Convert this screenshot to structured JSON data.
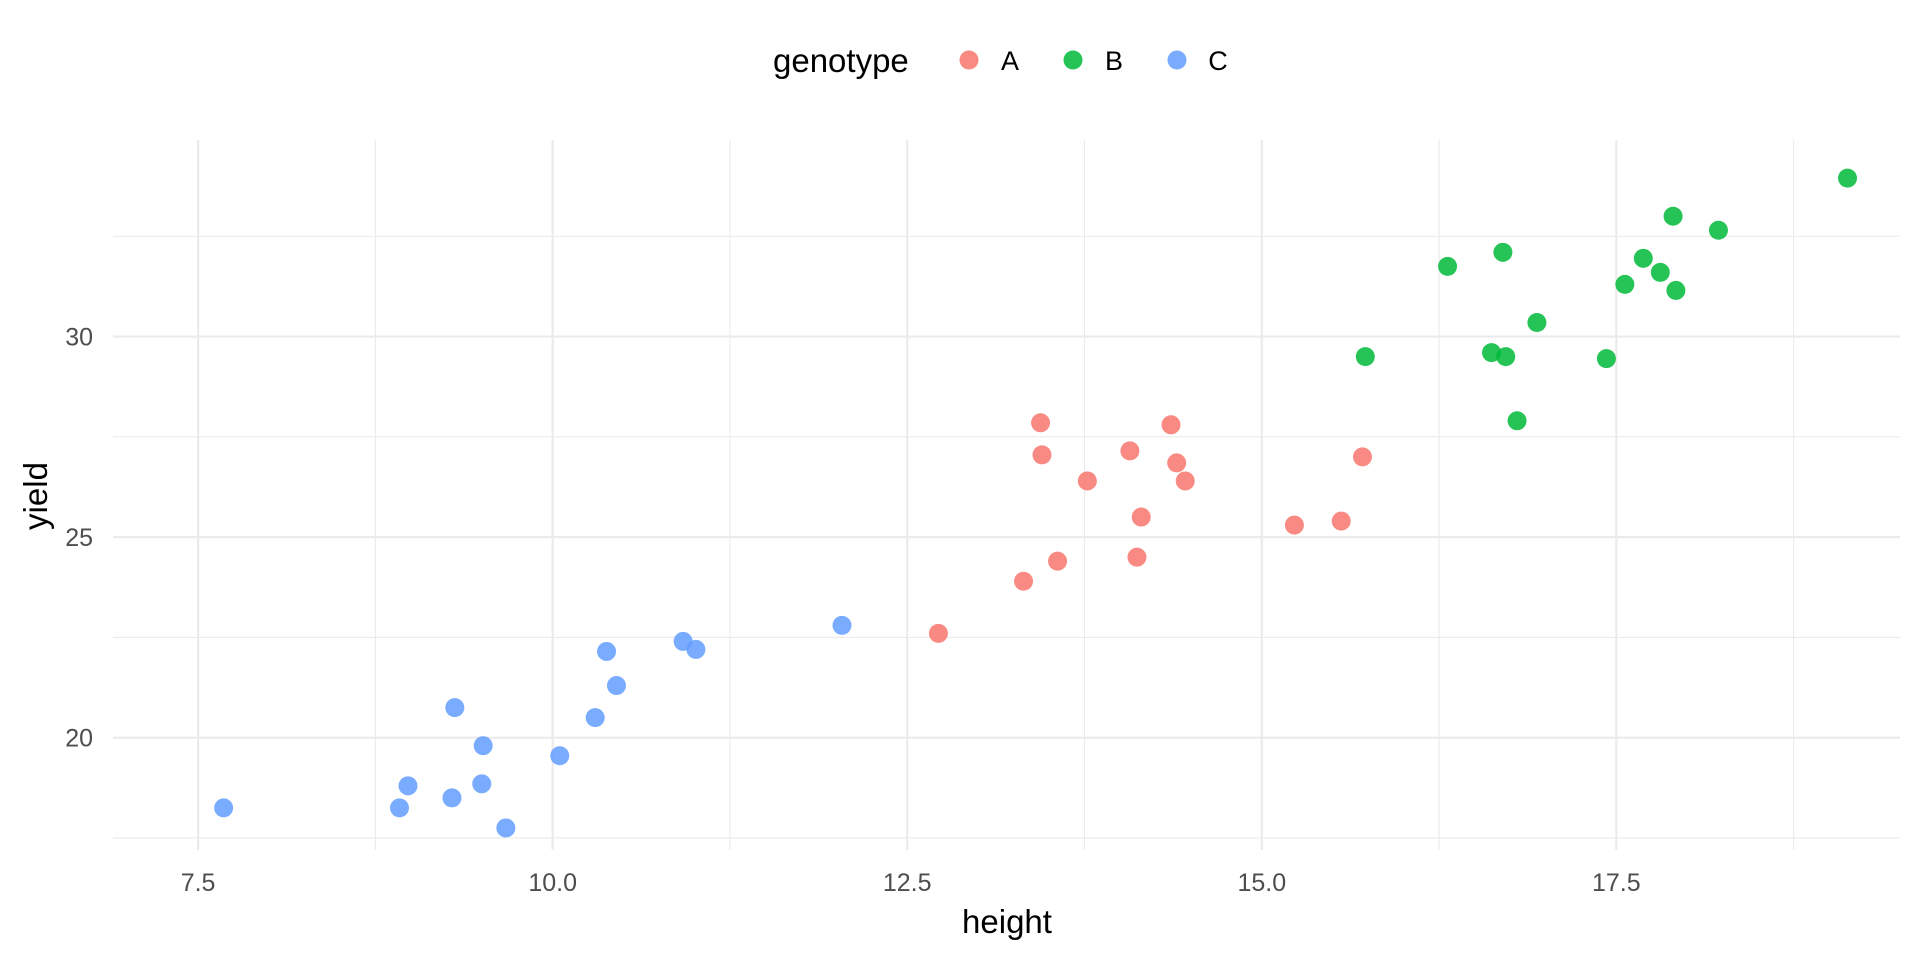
{
  "chart_data": {
    "type": "scatter",
    "xlabel": "height",
    "ylabel": "yield",
    "xlim": [
      6.9,
      19.5
    ],
    "ylim": [
      17.2,
      34.9
    ],
    "x_major_ticks": [
      7.5,
      10.0,
      12.5,
      15.0,
      17.5
    ],
    "x_major_tick_labels": [
      "7.5",
      "10.0",
      "12.5",
      "15.0",
      "17.5"
    ],
    "x_minor_ticks": [
      8.75,
      11.25,
      13.75,
      16.25,
      18.75
    ],
    "y_major_ticks": [
      20,
      25,
      30
    ],
    "y_major_tick_labels": [
      "20",
      "25",
      "30"
    ],
    "y_minor_ticks": [
      17.5,
      22.5,
      27.5,
      32.5
    ],
    "grid": true,
    "legend": {
      "title": "genotype",
      "position": "top"
    },
    "series": [
      {
        "name": "A",
        "color": "#F8766D",
        "points": [
          [
            12.72,
            22.6
          ],
          [
            13.32,
            23.9
          ],
          [
            13.44,
            27.85
          ],
          [
            13.45,
            27.05
          ],
          [
            13.56,
            24.4
          ],
          [
            13.77,
            26.4
          ],
          [
            14.07,
            27.15
          ],
          [
            14.12,
            24.5
          ],
          [
            14.15,
            25.5
          ],
          [
            14.36,
            27.8
          ],
          [
            14.4,
            26.85
          ],
          [
            14.46,
            26.4
          ],
          [
            15.23,
            25.3
          ],
          [
            15.56,
            25.4
          ],
          [
            15.71,
            27.0
          ]
        ]
      },
      {
        "name": "B",
        "color": "#00BA38",
        "points": [
          [
            15.73,
            29.5
          ],
          [
            16.31,
            31.75
          ],
          [
            16.62,
            29.6
          ],
          [
            16.7,
            32.1
          ],
          [
            16.72,
            29.5
          ],
          [
            16.8,
            27.9
          ],
          [
            16.94,
            30.35
          ],
          [
            17.43,
            29.45
          ],
          [
            17.56,
            31.3
          ],
          [
            17.69,
            31.95
          ],
          [
            17.81,
            31.6
          ],
          [
            17.9,
            33.0
          ],
          [
            17.92,
            31.15
          ],
          [
            18.22,
            32.65
          ],
          [
            19.13,
            33.95
          ]
        ]
      },
      {
        "name": "C",
        "color": "#619CFF",
        "points": [
          [
            7.68,
            18.25
          ],
          [
            8.92,
            18.25
          ],
          [
            8.98,
            18.8
          ],
          [
            9.29,
            18.5
          ],
          [
            9.31,
            20.75
          ],
          [
            9.5,
            18.85
          ],
          [
            9.51,
            19.8
          ],
          [
            9.67,
            17.75
          ],
          [
            10.05,
            19.55
          ],
          [
            10.3,
            20.5
          ],
          [
            10.38,
            22.15
          ],
          [
            10.45,
            21.3
          ],
          [
            10.92,
            22.4
          ],
          [
            11.01,
            22.2
          ],
          [
            12.04,
            22.8
          ]
        ]
      }
    ]
  }
}
